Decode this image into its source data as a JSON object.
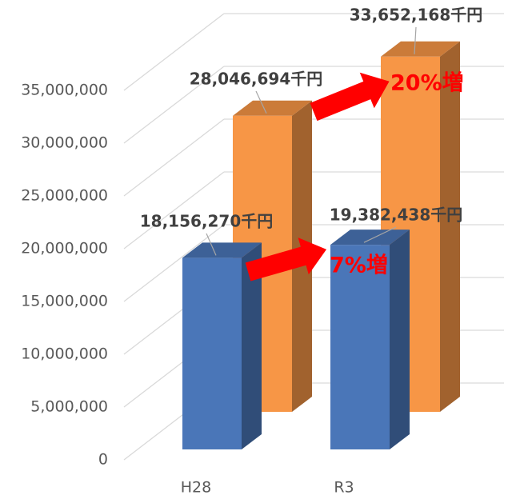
{
  "chart_data": {
    "type": "bar",
    "categories": [
      "H28",
      "R3"
    ],
    "series": [
      {
        "name": "",
        "color": "#4a76b8",
        "values": [
          18156270,
          19382438
        ],
        "value_labels": [
          "18,156,270千円",
          "19,382,438千円"
        ]
      },
      {
        "name": "",
        "color": "#f79646",
        "values": [
          28046694,
          33652168
        ],
        "value_labels": [
          "28,046,694千円",
          "33,652,168千円"
        ]
      }
    ],
    "ylim": [
      0,
      35000000
    ],
    "yticks": [
      {
        "value": 0,
        "label": "0"
      },
      {
        "value": 5000000,
        "label": "5,000,000"
      },
      {
        "value": 10000000,
        "label": "10,000,000"
      },
      {
        "value": 15000000,
        "label": "15,000,000"
      },
      {
        "value": 20000000,
        "label": "20,000,000"
      },
      {
        "value": 25000000,
        "label": "25,000,000"
      },
      {
        "value": 30000000,
        "label": "30,000,000"
      },
      {
        "value": 35000000,
        "label": "35,000,000"
      }
    ],
    "grid": true,
    "annotations": [
      "7%増",
      "20%増"
    ]
  }
}
